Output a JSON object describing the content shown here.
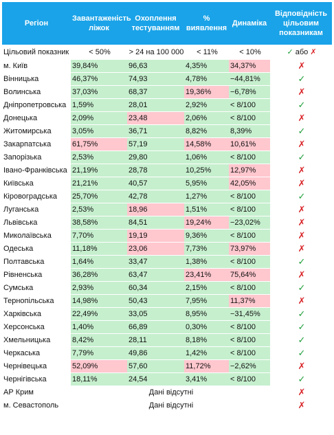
{
  "headers": [
    "Регіон",
    "Завантаженість ліжок",
    "Охоплення тестуванням",
    "% виявлення",
    "Динаміка",
    "Відповідність цільовим показникам"
  ],
  "target": {
    "label": "Цільовий показник",
    "values": [
      "< 50%",
      "> 24 на 100 000",
      "< 11%",
      "< 10%"
    ],
    "legend_or": "або"
  },
  "symbols": {
    "ok": "✓",
    "bad": "✗"
  },
  "rows": [
    {
      "region": "м. Київ",
      "beds": "39,84%",
      "beds_ok": true,
      "testing": "96,63",
      "testing_ok": true,
      "detect": "4,35%",
      "detect_ok": true,
      "dyn": "34,37%",
      "dyn_ok": false,
      "match": false
    },
    {
      "region": "Вінницька",
      "beds": "46,37%",
      "beds_ok": true,
      "testing": "74,93",
      "testing_ok": true,
      "detect": "4,78%",
      "detect_ok": true,
      "dyn": "−44,81%",
      "dyn_ok": true,
      "match": true
    },
    {
      "region": "Волинська",
      "beds": "37,03%",
      "beds_ok": true,
      "testing": "68,37",
      "testing_ok": true,
      "detect": "19,36%",
      "detect_ok": false,
      "dyn": "−6,78%",
      "dyn_ok": true,
      "match": false
    },
    {
      "region": "Дніпропетровська",
      "beds": "1,59%",
      "beds_ok": true,
      "testing": "28,01",
      "testing_ok": true,
      "detect": "2,92%",
      "detect_ok": true,
      "dyn": "< 8/100",
      "dyn_ok": true,
      "match": true
    },
    {
      "region": "Донецька",
      "beds": "2,09%",
      "beds_ok": true,
      "testing": "23,48",
      "testing_ok": false,
      "detect": "2,06%",
      "detect_ok": true,
      "dyn": "< 8/100",
      "dyn_ok": true,
      "match": false
    },
    {
      "region": "Житомирська",
      "beds": "3,05%",
      "beds_ok": true,
      "testing": "36,71",
      "testing_ok": true,
      "detect": "8,82%",
      "detect_ok": true,
      "dyn": "8,39%",
      "dyn_ok": true,
      "match": true
    },
    {
      "region": "Закарпатська",
      "beds": "61,75%",
      "beds_ok": false,
      "testing": "57,19",
      "testing_ok": true,
      "detect": "14,58%",
      "detect_ok": false,
      "dyn": "10,61%",
      "dyn_ok": false,
      "match": false
    },
    {
      "region": "Запорізька",
      "beds": "2,53%",
      "beds_ok": true,
      "testing": "29,80",
      "testing_ok": true,
      "detect": "1,06%",
      "detect_ok": true,
      "dyn": "< 8/100",
      "dyn_ok": true,
      "match": true
    },
    {
      "region": "Івано-Франківська",
      "beds": "21,19%",
      "beds_ok": true,
      "testing": "28,78",
      "testing_ok": true,
      "detect": "10,25%",
      "detect_ok": true,
      "dyn": "12,97%",
      "dyn_ok": false,
      "match": false
    },
    {
      "region": "Київська",
      "beds": "21,21%",
      "beds_ok": true,
      "testing": "40,57",
      "testing_ok": true,
      "detect": "5,95%",
      "detect_ok": true,
      "dyn": "42,05%",
      "dyn_ok": false,
      "match": false
    },
    {
      "region": "Кіровоградська",
      "beds": "25,70%",
      "beds_ok": true,
      "testing": "42,78",
      "testing_ok": true,
      "detect": "1,27%",
      "detect_ok": true,
      "dyn": "< 8/100",
      "dyn_ok": true,
      "match": true
    },
    {
      "region": "Луганська",
      "beds": "2,53%",
      "beds_ok": true,
      "testing": "18,96",
      "testing_ok": false,
      "detect": "1,51%",
      "detect_ok": true,
      "dyn": "< 8/100",
      "dyn_ok": true,
      "match": false
    },
    {
      "region": "Львівська",
      "beds": "38,58%",
      "beds_ok": true,
      "testing": "84,51",
      "testing_ok": true,
      "detect": "19,24%",
      "detect_ok": false,
      "dyn": "−23,02%",
      "dyn_ok": true,
      "match": false
    },
    {
      "region": "Миколаївська",
      "beds": "7,70%",
      "beds_ok": true,
      "testing": "19,19",
      "testing_ok": false,
      "detect": "9,36%",
      "detect_ok": true,
      "dyn": "< 8/100",
      "dyn_ok": true,
      "match": false
    },
    {
      "region": "Одеська",
      "beds": "11,18%",
      "beds_ok": true,
      "testing": "23,06",
      "testing_ok": false,
      "detect": "7,73%",
      "detect_ok": true,
      "dyn": "73,97%",
      "dyn_ok": false,
      "match": false
    },
    {
      "region": "Полтавська",
      "beds": "1,64%",
      "beds_ok": true,
      "testing": "33,47",
      "testing_ok": true,
      "detect": "1,38%",
      "detect_ok": true,
      "dyn": "< 8/100",
      "dyn_ok": true,
      "match": true
    },
    {
      "region": "Рівненська",
      "beds": "36,28%",
      "beds_ok": true,
      "testing": "63,47",
      "testing_ok": true,
      "detect": "23,41%",
      "detect_ok": false,
      "dyn": "75,64%",
      "dyn_ok": false,
      "match": false
    },
    {
      "region": "Сумська",
      "beds": "2,93%",
      "beds_ok": true,
      "testing": "60,34",
      "testing_ok": true,
      "detect": "2,15%",
      "detect_ok": true,
      "dyn": "< 8/100",
      "dyn_ok": true,
      "match": true
    },
    {
      "region": "Тернопільська",
      "beds": "14,98%",
      "beds_ok": true,
      "testing": "50,43",
      "testing_ok": true,
      "detect": "7,95%",
      "detect_ok": true,
      "dyn": "11,37%",
      "dyn_ok": false,
      "match": false
    },
    {
      "region": "Харківська",
      "beds": "22,49%",
      "beds_ok": true,
      "testing": "33,05",
      "testing_ok": true,
      "detect": "8,95%",
      "detect_ok": true,
      "dyn": "−31,45%",
      "dyn_ok": true,
      "match": true
    },
    {
      "region": "Херсонська",
      "beds": "1,40%",
      "beds_ok": true,
      "testing": "66,89",
      "testing_ok": true,
      "detect": "0,30%",
      "detect_ok": true,
      "dyn": "< 8/100",
      "dyn_ok": true,
      "match": true
    },
    {
      "region": "Хмельницька",
      "beds": "8,42%",
      "beds_ok": true,
      "testing": "28,11",
      "testing_ok": true,
      "detect": "8,18%",
      "detect_ok": true,
      "dyn": "< 8/100",
      "dyn_ok": true,
      "match": true
    },
    {
      "region": "Черкаська",
      "beds": "7,79%",
      "beds_ok": true,
      "testing": "49,86",
      "testing_ok": true,
      "detect": "1,42%",
      "detect_ok": true,
      "dyn": "< 8/100",
      "dyn_ok": true,
      "match": true
    },
    {
      "region": "Чернівецька",
      "beds": "52,09%",
      "beds_ok": false,
      "testing": "57,60",
      "testing_ok": true,
      "detect": "11,72%",
      "detect_ok": false,
      "dyn": "−2,62%",
      "dyn_ok": true,
      "match": false
    },
    {
      "region": "Чернігівська",
      "beds": "18,11%",
      "beds_ok": true,
      "testing": "24,54",
      "testing_ok": true,
      "detect": "3,41%",
      "detect_ok": true,
      "dyn": "< 8/100",
      "dyn_ok": true,
      "match": true
    }
  ],
  "nodata_rows": [
    {
      "region": "АР Крим",
      "text": "Дані відсутні",
      "match": false
    },
    {
      "region": "м. Севастополь",
      "text": "Дані відсутні",
      "match": false
    }
  ],
  "colors": {
    "header": "#1aa3e8",
    "good": "#c6efce",
    "bad": "#ffc7ce",
    "check": "#1f9e3a",
    "cross": "#d9262a"
  }
}
